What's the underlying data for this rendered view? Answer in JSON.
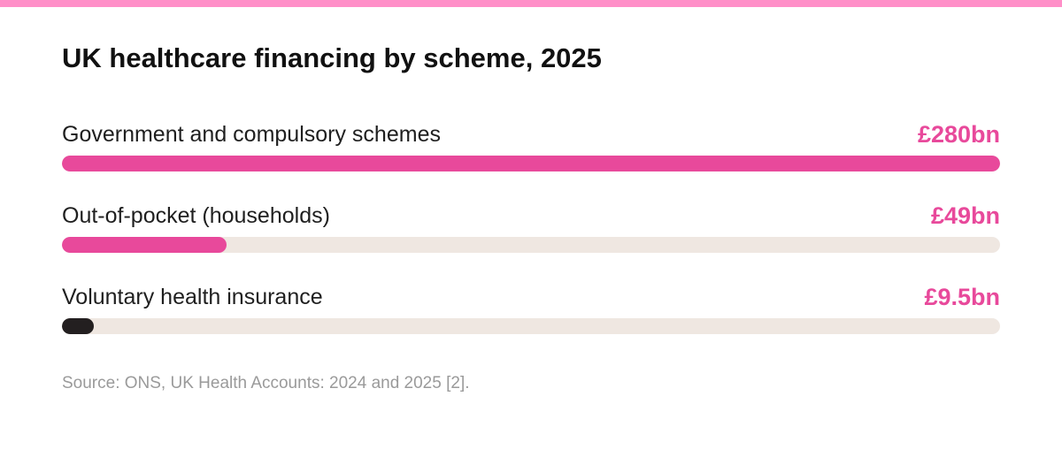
{
  "theme": {
    "stripe_color": "#ff8fc8",
    "accent_color": "#e8499b",
    "dark_color": "#231f20",
    "track_color": "#efe7e1"
  },
  "chart_data": {
    "type": "bar",
    "orientation": "horizontal",
    "title": "UK healthcare financing by scheme, 2025",
    "categories": [
      "Government and compulsory schemes",
      "Out-of-pocket (households)",
      "Voluntary health insurance"
    ],
    "values": [
      280,
      49,
      9.5
    ],
    "value_labels": [
      "£280bn",
      "£49bn",
      "£9.5bn"
    ],
    "units": "£bn",
    "xlim": [
      0,
      280
    ],
    "bar_colors": [
      "#e8499b",
      "#e8499b",
      "#231f20"
    ],
    "value_label_color": "#e8499b",
    "grid": false,
    "legend": "none",
    "source": "Source: ONS, UK Health Accounts: 2024 and 2025 [2]."
  }
}
